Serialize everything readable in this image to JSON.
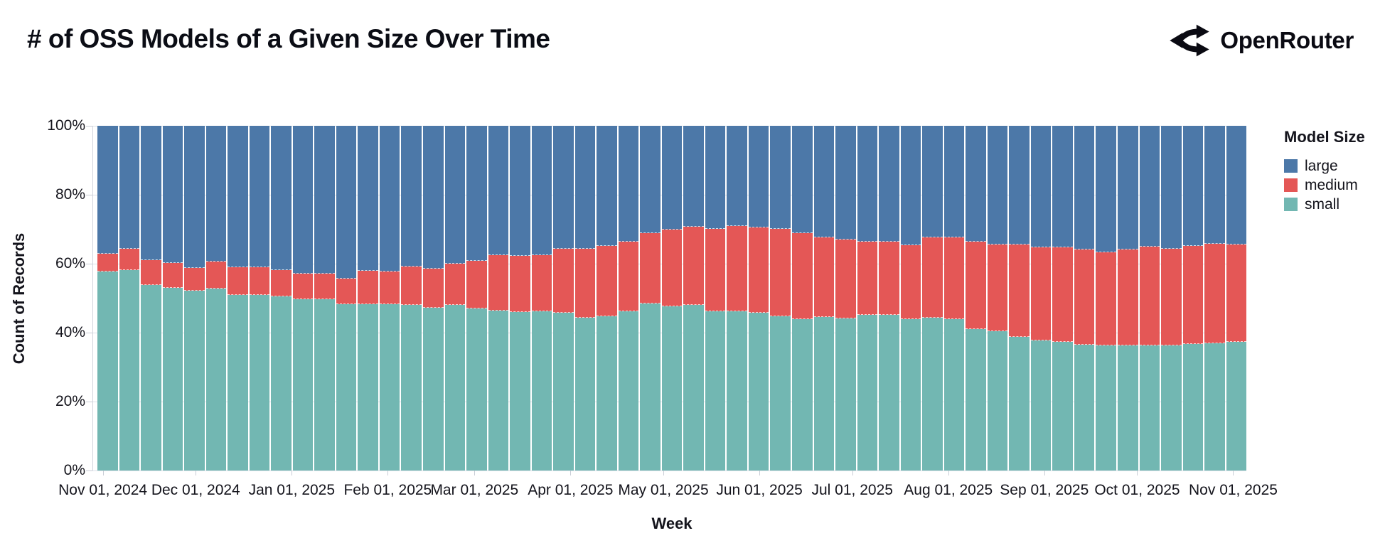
{
  "header": {
    "title": "# of OSS Models of a Given Size Over Time",
    "brand": "OpenRouter"
  },
  "chart_data": {
    "type": "bar",
    "stacked": true,
    "normalized": true,
    "title": "# of OSS Models of a Given Size Over Time",
    "xlabel": "Week",
    "ylabel": "Count of Records",
    "ylim": [
      0,
      100
    ],
    "grid": true,
    "y_ticks": [
      "0%",
      "20%",
      "40%",
      "60%",
      "80%",
      "100%"
    ],
    "x_ticks": [
      {
        "label": "Nov 01, 2024",
        "date": "2024-11-01"
      },
      {
        "label": "Dec 01, 2024",
        "date": "2024-12-01"
      },
      {
        "label": "Jan 01, 2025",
        "date": "2025-01-01"
      },
      {
        "label": "Feb 01, 2025",
        "date": "2025-02-01"
      },
      {
        "label": "Mar 01, 2025",
        "date": "2025-03-01"
      },
      {
        "label": "Apr 01, 2025",
        "date": "2025-04-01"
      },
      {
        "label": "May 01, 2025",
        "date": "2025-05-01"
      },
      {
        "label": "Jun 01, 2025",
        "date": "2025-06-01"
      },
      {
        "label": "Jul 01, 2025",
        "date": "2025-07-01"
      },
      {
        "label": "Aug 01, 2025",
        "date": "2025-08-01"
      },
      {
        "label": "Sep 01, 2025",
        "date": "2025-09-01"
      },
      {
        "label": "Oct 01, 2025",
        "date": "2025-10-01"
      },
      {
        "label": "Nov 01, 2025",
        "date": "2025-11-01"
      }
    ],
    "legend": {
      "title": "Model Size",
      "position": "right",
      "entries": [
        {
          "label": "large",
          "color": "#4c78a8"
        },
        {
          "label": "medium",
          "color": "#e45756"
        },
        {
          "label": "small",
          "color": "#72b7b2"
        }
      ]
    },
    "series_order_bottom_to_top": [
      "small",
      "medium",
      "large"
    ],
    "unit": "percent of records",
    "weeks": [
      {
        "date": "2024-11-01",
        "small": 58.1,
        "medium": 4.9,
        "large": 37.0
      },
      {
        "date": "2024-11-08",
        "small": 58.5,
        "medium": 6.1,
        "large": 35.4
      },
      {
        "date": "2024-11-15",
        "small": 54.3,
        "medium": 6.9,
        "large": 38.8
      },
      {
        "date": "2024-11-22",
        "small": 53.5,
        "medium": 7.0,
        "large": 39.5
      },
      {
        "date": "2024-11-29",
        "small": 52.5,
        "medium": 6.5,
        "large": 41.0
      },
      {
        "date": "2024-12-06",
        "small": 53.1,
        "medium": 7.8,
        "large": 39.1
      },
      {
        "date": "2024-12-13",
        "small": 51.4,
        "medium": 7.8,
        "large": 40.8
      },
      {
        "date": "2024-12-20",
        "small": 51.4,
        "medium": 7.8,
        "large": 40.8
      },
      {
        "date": "2024-12-27",
        "small": 50.9,
        "medium": 7.4,
        "large": 41.7
      },
      {
        "date": "2025-01-03",
        "small": 50.2,
        "medium": 7.1,
        "large": 42.7
      },
      {
        "date": "2025-01-10",
        "small": 50.1,
        "medium": 7.2,
        "large": 42.7
      },
      {
        "date": "2025-01-17",
        "small": 48.7,
        "medium": 7.2,
        "large": 44.1
      },
      {
        "date": "2025-01-24",
        "small": 48.7,
        "medium": 9.4,
        "large": 41.9
      },
      {
        "date": "2025-01-31",
        "small": 48.7,
        "medium": 9.2,
        "large": 42.1
      },
      {
        "date": "2025-02-07",
        "small": 48.5,
        "medium": 10.9,
        "large": 40.6
      },
      {
        "date": "2025-02-14",
        "small": 47.7,
        "medium": 11.1,
        "large": 41.2
      },
      {
        "date": "2025-02-21",
        "small": 48.5,
        "medium": 11.7,
        "large": 39.8
      },
      {
        "date": "2025-02-28",
        "small": 47.4,
        "medium": 13.6,
        "large": 39.0
      },
      {
        "date": "2025-03-07",
        "small": 46.9,
        "medium": 15.7,
        "large": 37.4
      },
      {
        "date": "2025-03-14",
        "small": 46.3,
        "medium": 16.1,
        "large": 37.6
      },
      {
        "date": "2025-03-21",
        "small": 46.5,
        "medium": 16.1,
        "large": 37.4
      },
      {
        "date": "2025-03-28",
        "small": 46.1,
        "medium": 18.5,
        "large": 35.4
      },
      {
        "date": "2025-04-04",
        "small": 44.7,
        "medium": 19.8,
        "large": 35.5
      },
      {
        "date": "2025-04-11",
        "small": 45.2,
        "medium": 20.2,
        "large": 34.6
      },
      {
        "date": "2025-04-18",
        "small": 46.6,
        "medium": 19.9,
        "large": 33.5
      },
      {
        "date": "2025-04-25",
        "small": 48.9,
        "medium": 20.2,
        "large": 30.9
      },
      {
        "date": "2025-05-02",
        "small": 48.0,
        "medium": 22.2,
        "large": 29.8
      },
      {
        "date": "2025-05-09",
        "small": 48.4,
        "medium": 22.5,
        "large": 29.1
      },
      {
        "date": "2025-05-16",
        "small": 46.6,
        "medium": 23.8,
        "large": 29.6
      },
      {
        "date": "2025-05-23",
        "small": 46.6,
        "medium": 24.6,
        "large": 28.8
      },
      {
        "date": "2025-05-30",
        "small": 46.1,
        "medium": 24.6,
        "large": 29.3
      },
      {
        "date": "2025-06-06",
        "small": 45.2,
        "medium": 25.2,
        "large": 29.6
      },
      {
        "date": "2025-06-13",
        "small": 44.4,
        "medium": 24.6,
        "large": 31.0
      },
      {
        "date": "2025-06-20",
        "small": 45.0,
        "medium": 22.9,
        "large": 32.1
      },
      {
        "date": "2025-06-27",
        "small": 44.6,
        "medium": 22.7,
        "large": 32.7
      },
      {
        "date": "2025-07-04",
        "small": 45.6,
        "medium": 20.9,
        "large": 33.5
      },
      {
        "date": "2025-07-11",
        "small": 45.6,
        "medium": 21.0,
        "large": 33.4
      },
      {
        "date": "2025-07-18",
        "small": 44.4,
        "medium": 21.2,
        "large": 34.4
      },
      {
        "date": "2025-07-25",
        "small": 44.7,
        "medium": 23.1,
        "large": 32.2
      },
      {
        "date": "2025-08-01",
        "small": 44.4,
        "medium": 23.4,
        "large": 32.2
      },
      {
        "date": "2025-08-08",
        "small": 41.5,
        "medium": 25.2,
        "large": 33.3
      },
      {
        "date": "2025-08-15",
        "small": 40.8,
        "medium": 24.9,
        "large": 34.3
      },
      {
        "date": "2025-08-22",
        "small": 39.2,
        "medium": 26.5,
        "large": 34.3
      },
      {
        "date": "2025-08-29",
        "small": 38.2,
        "medium": 26.8,
        "large": 35.0
      },
      {
        "date": "2025-09-05",
        "small": 37.7,
        "medium": 27.3,
        "large": 35.0
      },
      {
        "date": "2025-09-12",
        "small": 37.0,
        "medium": 27.3,
        "large": 35.7
      },
      {
        "date": "2025-09-19",
        "small": 36.7,
        "medium": 26.9,
        "large": 36.4
      },
      {
        "date": "2025-09-26",
        "small": 36.8,
        "medium": 27.5,
        "large": 35.7
      },
      {
        "date": "2025-10-03",
        "small": 36.8,
        "medium": 28.4,
        "large": 34.8
      },
      {
        "date": "2025-10-10",
        "small": 36.7,
        "medium": 27.8,
        "large": 35.5
      },
      {
        "date": "2025-10-17",
        "small": 37.2,
        "medium": 28.2,
        "large": 34.6
      },
      {
        "date": "2025-10-24",
        "small": 37.4,
        "medium": 28.6,
        "large": 34.0
      },
      {
        "date": "2025-10-31",
        "small": 37.8,
        "medium": 28.0,
        "large": 34.2
      }
    ]
  },
  "colors": {
    "large": "#4c78a8",
    "medium": "#e45756",
    "small": "#72b7b2",
    "text": "#14141c",
    "grid": "#dde1e8",
    "axis": "#d0d4dc",
    "background": "#ffffff"
  }
}
